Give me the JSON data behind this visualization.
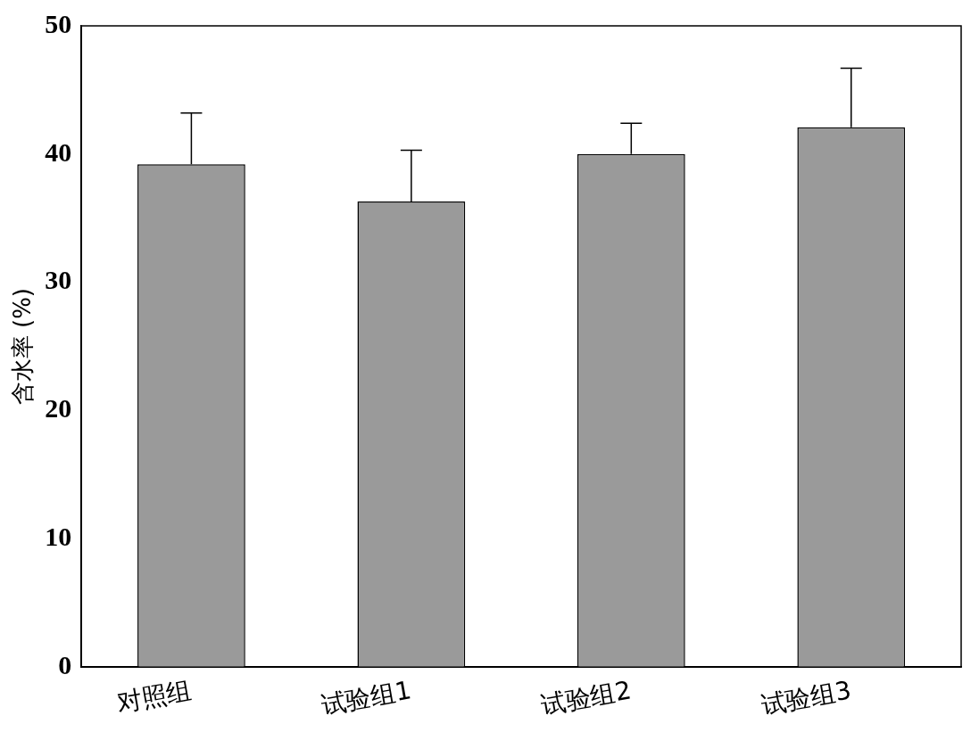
{
  "chart_data": {
    "type": "bar",
    "ylabel": "含水率 (%)",
    "categories": [
      "对照组",
      "试验组1",
      "试验组2",
      "试验组3"
    ],
    "series": [
      {
        "color": "#9a9a9a",
        "values": [
          39.2,
          36.3,
          40.0,
          42.1
        ],
        "errors": [
          [
            39.2,
            43.2
          ],
          [
            36.3,
            40.3
          ],
          [
            40.0,
            42.4
          ],
          [
            42.1,
            46.7
          ]
        ]
      }
    ],
    "ylim": [
      0,
      50
    ],
    "yticks": [
      0,
      10,
      20,
      30,
      40,
      50
    ],
    "grid": false,
    "legend": false
  }
}
